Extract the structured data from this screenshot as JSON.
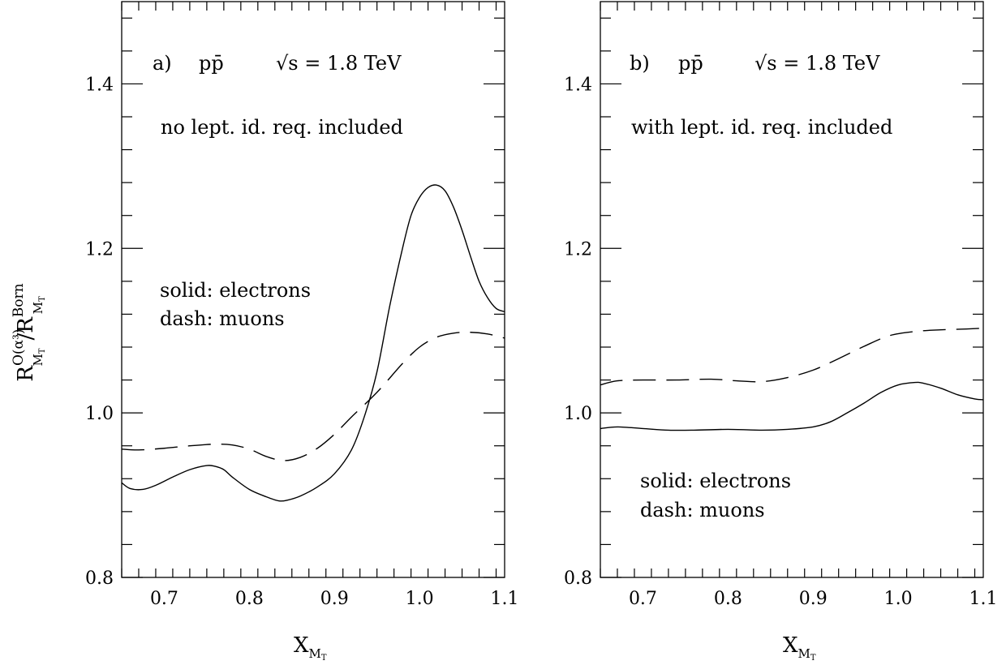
{
  "figure": {
    "ylabel": {
      "base1": "R",
      "sup1": "O(α³)",
      "sub1": "M",
      "subsub1": "T",
      "slash": "/",
      "base2": "R",
      "sup2": "Born",
      "sub2": "M",
      "subsub2": "T"
    }
  },
  "chart_data": [
    {
      "type": "line",
      "panel_label": "a)",
      "process": "pp̄",
      "energy": "√s = 1.8 TeV",
      "note": "no lept. id. req. included",
      "legend": [
        "solid: electrons",
        "dash: muons"
      ],
      "xlabel": {
        "main": "X",
        "sub": "M",
        "subsub": "T"
      },
      "xlim": [
        0.65,
        1.1
      ],
      "ylim": [
        0.8,
        1.5
      ],
      "xticks": [
        "0.7",
        "0.8",
        "0.9",
        "1.0",
        "1.1"
      ],
      "yticks": [
        "0.8",
        "1.0",
        "1.2",
        "1.4"
      ],
      "series": [
        {
          "name": "electrons",
          "style": "solid",
          "x": [
            0.65,
            0.66,
            0.675,
            0.69,
            0.71,
            0.73,
            0.75,
            0.76,
            0.77,
            0.78,
            0.8,
            0.82,
            0.835,
            0.845,
            0.86,
            0.88,
            0.9,
            0.92,
            0.935,
            0.95,
            0.965,
            0.98,
            0.99,
            1.0,
            1.01,
            1.02,
            1.03,
            1.04,
            1.05,
            1.06,
            1.07,
            1.08,
            1.09,
            1.1
          ],
          "y": [
            0.915,
            0.908,
            0.907,
            0.912,
            0.922,
            0.931,
            0.936,
            0.935,
            0.931,
            0.922,
            0.907,
            0.898,
            0.893,
            0.894,
            0.899,
            0.91,
            0.926,
            0.955,
            0.995,
            1.05,
            1.13,
            1.2,
            1.24,
            1.262,
            1.274,
            1.277,
            1.27,
            1.25,
            1.222,
            1.19,
            1.16,
            1.14,
            1.127,
            1.123
          ]
        },
        {
          "name": "muons",
          "style": "dashed",
          "x": [
            0.65,
            0.67,
            0.7,
            0.73,
            0.76,
            0.78,
            0.8,
            0.82,
            0.84,
            0.86,
            0.88,
            0.9,
            0.92,
            0.95,
            0.98,
            1.0,
            1.02,
            1.04,
            1.06,
            1.08,
            1.1
          ],
          "y": [
            0.956,
            0.955,
            0.957,
            0.96,
            0.962,
            0.961,
            0.956,
            0.947,
            0.942,
            0.946,
            0.957,
            0.974,
            0.995,
            1.025,
            1.06,
            1.08,
            1.092,
            1.097,
            1.098,
            1.096,
            1.091
          ]
        }
      ]
    },
    {
      "type": "line",
      "panel_label": "b)",
      "process": "pp̄",
      "energy": "√s = 1.8 TeV",
      "note": "with lept. id. req. included",
      "legend": [
        "solid: electrons",
        "dash: muons"
      ],
      "xlabel": {
        "main": "X",
        "sub": "M",
        "subsub": "T"
      },
      "xlim": [
        0.65,
        1.1
      ],
      "ylim": [
        0.8,
        1.5
      ],
      "xticks": [
        "0.7",
        "0.8",
        "0.9",
        "1.0",
        "1.1"
      ],
      "yticks": [
        "0.8",
        "1.0",
        "1.2",
        "1.4"
      ],
      "series": [
        {
          "name": "electrons",
          "style": "solid",
          "x": [
            0.65,
            0.67,
            0.7,
            0.73,
            0.76,
            0.8,
            0.84,
            0.87,
            0.9,
            0.92,
            0.94,
            0.96,
            0.98,
            1.0,
            1.02,
            1.03,
            1.05,
            1.07,
            1.09,
            1.1
          ],
          "y": [
            0.981,
            0.983,
            0.981,
            0.979,
            0.979,
            0.98,
            0.979,
            0.98,
            0.983,
            0.989,
            1.0,
            1.012,
            1.025,
            1.034,
            1.037,
            1.036,
            1.03,
            1.022,
            1.017,
            1.016
          ]
        },
        {
          "name": "muons",
          "style": "dashed",
          "x": [
            0.65,
            0.67,
            0.7,
            0.74,
            0.78,
            0.81,
            0.84,
            0.87,
            0.9,
            0.93,
            0.96,
            0.99,
            1.02,
            1.05,
            1.08,
            1.1
          ],
          "y": [
            1.034,
            1.039,
            1.04,
            1.04,
            1.041,
            1.039,
            1.038,
            1.043,
            1.052,
            1.066,
            1.081,
            1.094,
            1.099,
            1.101,
            1.102,
            1.103
          ]
        }
      ]
    }
  ]
}
